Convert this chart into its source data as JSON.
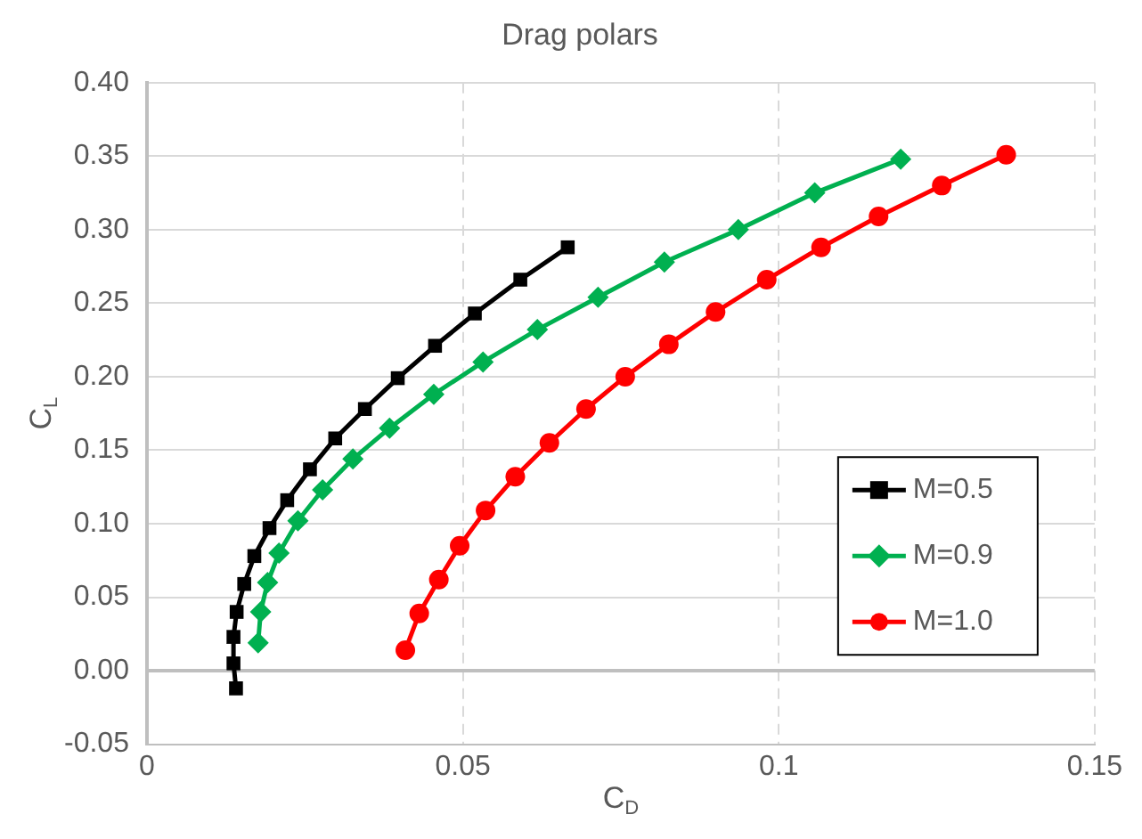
{
  "chart_data": {
    "type": "line",
    "title": "Drag polars",
    "xlabel": "C$_{D}$",
    "ylabel": "C$_{L}$",
    "xlim": [
      0,
      0.15
    ],
    "xticks": [
      0,
      0.05,
      0.1,
      0.15
    ],
    "ylim": [
      -0.05,
      0.4
    ],
    "yticks": [
      {
        "value": -0.05,
        "label": "-0.05"
      },
      {
        "value": 0,
        "label": "0.00"
      },
      {
        "value": 0.05,
        "label": "0.05"
      },
      {
        "value": 0.1,
        "label": "0.10"
      },
      {
        "value": 0.15,
        "label": "0.15"
      },
      {
        "value": 0.2,
        "label": "0.20"
      },
      {
        "value": 0.25,
        "label": "0.25"
      },
      {
        "value": 0.3,
        "label": "0.30"
      },
      {
        "value": 0.35,
        "label": "0.35"
      },
      {
        "value": 0.4,
        "label": "0.40"
      }
    ],
    "grid": true,
    "legend": "right",
    "line_style": "solid",
    "series": [
      {
        "name": "M=0.5",
        "color": "#000000",
        "marker": "square",
        "x": [
          0.0141,
          0.0137,
          0.0137,
          0.0142,
          0.0154,
          0.017,
          0.0194,
          0.0222,
          0.0258,
          0.0298,
          0.0345,
          0.0397,
          0.0456,
          0.0519,
          0.0591,
          0.0666
        ],
        "values": [
          -0.012,
          0.005,
          0.023,
          0.04,
          0.059,
          0.078,
          0.097,
          0.116,
          0.137,
          0.158,
          0.178,
          0.199,
          0.221,
          0.243,
          0.266,
          0.288
        ]
      },
      {
        "name": "M=0.9",
        "color": "#00b050",
        "marker": "diamond",
        "x": [
          0.0176,
          0.018,
          0.0191,
          0.0209,
          0.0239,
          0.0278,
          0.0326,
          0.0384,
          0.0454,
          0.0532,
          0.0618,
          0.0714,
          0.0819,
          0.0936,
          0.1057,
          0.1193
        ],
        "values": [
          0.019,
          0.04,
          0.06,
          0.08,
          0.102,
          0.123,
          0.144,
          0.165,
          0.188,
          0.21,
          0.232,
          0.254,
          0.278,
          0.3,
          0.325,
          0.348
        ]
      },
      {
        "name": "M=1.0",
        "color": "#ff0000",
        "marker": "circle",
        "x": [
          0.0409,
          0.0431,
          0.0462,
          0.0495,
          0.0536,
          0.0583,
          0.0637,
          0.0695,
          0.0757,
          0.0826,
          0.09,
          0.0981,
          0.1067,
          0.1158,
          0.1258,
          0.136
        ],
        "values": [
          0.014,
          0.039,
          0.062,
          0.085,
          0.109,
          0.132,
          0.155,
          0.178,
          0.2,
          0.222,
          0.244,
          0.266,
          0.288,
          0.309,
          0.33,
          0.351
        ]
      }
    ]
  }
}
